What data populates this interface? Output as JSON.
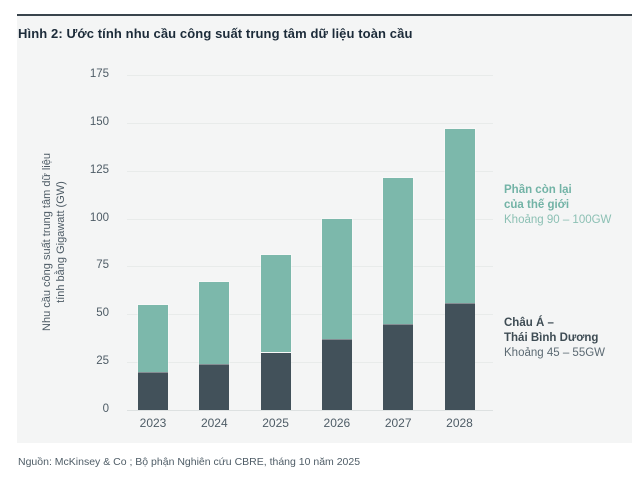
{
  "figure": {
    "title": "Hình 2: Ước tính nhu cầu công suất trung tâm dữ liệu toàn cầu",
    "source": "Nguồn: McKinsey & Co ; Bộ phận Nghiên cứu CBRE, tháng 10 năm 2025"
  },
  "ylabel_lines": {
    "line1": "Nhu cầu công suất trung tâm dữ liệu",
    "line2": "tính bằng Gigawatt (GW)"
  },
  "annotations": {
    "rest_of_world": {
      "line1": "Phần còn lại",
      "line2": "của thế giới",
      "line3": "Khoảng 90 – 100GW"
    },
    "apac": {
      "line1": "Châu Á –",
      "line2": "Thái Bình Dương",
      "line3": "Khoảng 45 – 55GW"
    }
  },
  "colors": {
    "apac_bar": "#42515a",
    "rest_of_world_bar": "#7cb8ab",
    "card_background": "#f4f5f5",
    "title_text": "#1c2b39",
    "axis_text": "#4e5c66",
    "gridline": "#e8ebea",
    "top_rule": "#39444c"
  },
  "chart_data": {
    "type": "bar",
    "stacked": true,
    "title": "Hình 2: Ước tính nhu cầu công suất trung tâm dữ liệu toàn cầu",
    "xlabel": "",
    "ylabel": "Nhu cầu công suất trung tâm dữ liệu tính bằng Gigawatt (GW)",
    "categories": [
      "2023",
      "2024",
      "2025",
      "2026",
      "2027",
      "2028"
    ],
    "series": [
      {
        "name": "Châu Á – Thái Bình Dương",
        "color": "#42515a",
        "values": [
          20,
          24,
          30,
          37,
          45,
          56
        ]
      },
      {
        "name": "Phần còn lại của thế giới",
        "color": "#7cb8ab",
        "values": [
          35,
          43,
          51,
          63,
          76,
          91
        ]
      }
    ],
    "totals": [
      55,
      67,
      81,
      100,
      121,
      147
    ],
    "ylim": [
      0,
      175
    ],
    "yticks": [
      0,
      25,
      50,
      75,
      100,
      125,
      150,
      175
    ],
    "grid": true,
    "legend_position": "right"
  }
}
